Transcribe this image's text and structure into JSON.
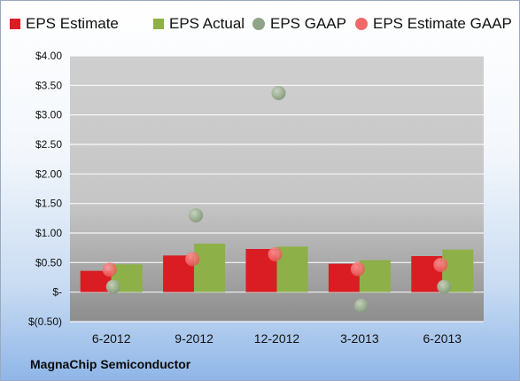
{
  "company_label": "MagnaChip Semiconductor",
  "colors": {
    "estimate": "#d91d23",
    "actual": "#8db048",
    "gaap": "#8fa585",
    "estimate_gaap": "#f06a6a"
  },
  "chart_data": {
    "type": "bar",
    "categories": [
      "6-2012",
      "9-2012",
      "12-2012",
      "3-2013",
      "6-2013"
    ],
    "series": [
      {
        "name": "EPS Estimate",
        "kind": "bar",
        "values": [
          0.36,
          0.62,
          0.73,
          0.48,
          0.61
        ]
      },
      {
        "name": "EPS Actual",
        "kind": "bar",
        "values": [
          0.47,
          0.82,
          0.77,
          0.54,
          0.72
        ]
      },
      {
        "name": "EPS GAAP",
        "kind": "point",
        "values": [
          0.09,
          1.3,
          3.37,
          -0.23,
          0.09
        ]
      },
      {
        "name": "EPS Estimate GAAP",
        "kind": "point",
        "values": [
          0.38,
          0.56,
          0.64,
          0.39,
          0.46
        ]
      }
    ],
    "y_ticks": [
      {
        "value": 4.0,
        "label": "$4.00"
      },
      {
        "value": 3.5,
        "label": "$3.50"
      },
      {
        "value": 3.0,
        "label": "$3.00"
      },
      {
        "value": 2.5,
        "label": "$2.50"
      },
      {
        "value": 2.0,
        "label": "$2.00"
      },
      {
        "value": 1.5,
        "label": "$1.50"
      },
      {
        "value": 1.0,
        "label": "$1.00"
      },
      {
        "value": 0.5,
        "label": "$0.50"
      },
      {
        "value": 0.0,
        "label": "$-"
      },
      {
        "value": -0.5,
        "label": "$(0.50)"
      }
    ],
    "ylim": [
      -0.5,
      4.0
    ],
    "legend_position": "top",
    "grid": true
  }
}
